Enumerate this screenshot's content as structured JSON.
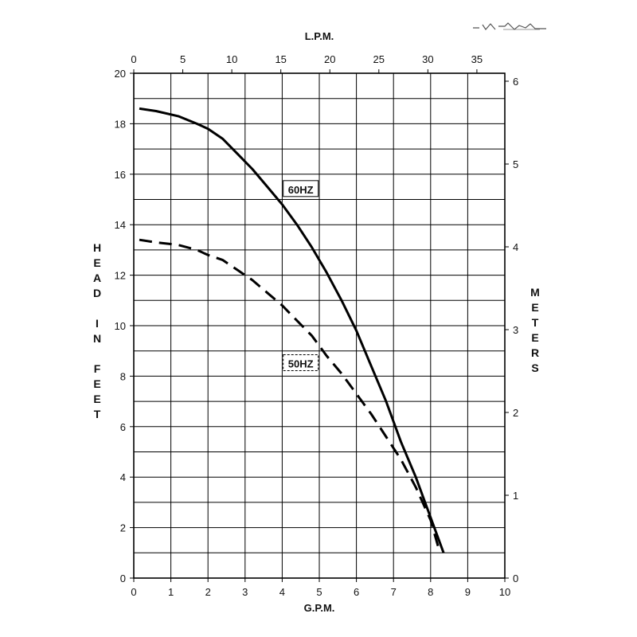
{
  "chart_data": {
    "type": "line",
    "title": "",
    "xlabel_bottom": "G.P.M.",
    "xlabel_top": "L.P.M.",
    "ylabel_left": "HEAD IN FEET",
    "ylabel_right": "METERS",
    "xlim": [
      0,
      10
    ],
    "ylim": [
      0,
      20
    ],
    "x_top_lim": [
      0,
      37.85
    ],
    "y_right_lim": [
      0,
      6.096
    ],
    "x_ticks": [
      "0",
      "1",
      "2",
      "3",
      "4",
      "5",
      "6",
      "7",
      "8",
      "9",
      "10"
    ],
    "y_ticks": [
      "0",
      "2",
      "4",
      "6",
      "8",
      "10",
      "12",
      "14",
      "16",
      "18",
      "20"
    ],
    "x_top_ticks": [
      "0",
      "5",
      "10",
      "15",
      "20",
      "25",
      "30",
      "35"
    ],
    "y_right_ticks": [
      "0",
      "1",
      "2",
      "3",
      "4",
      "5",
      "6"
    ],
    "grid": true,
    "series": [
      {
        "name": "60HZ",
        "style": "solid",
        "color": "#000000",
        "x": [
          0.15,
          0.6,
          1.2,
          1.7,
          2.0,
          2.4,
          2.8,
          3.2,
          3.6,
          4.0,
          4.4,
          4.8,
          5.2,
          5.6,
          6.0,
          6.4,
          6.8,
          7.2,
          7.6,
          8.0,
          8.35
        ],
        "y": [
          18.6,
          18.5,
          18.3,
          18.0,
          17.8,
          17.4,
          16.8,
          16.2,
          15.5,
          14.8,
          14.0,
          13.1,
          12.1,
          11.0,
          9.8,
          8.4,
          7.0,
          5.4,
          4.0,
          2.4,
          1.0
        ]
      },
      {
        "name": "50HZ",
        "style": "dashed",
        "color": "#000000",
        "x": [
          0.15,
          0.6,
          1.2,
          1.7,
          2.0,
          2.4,
          2.8,
          3.2,
          3.6,
          4.0,
          4.4,
          4.8,
          5.2,
          5.6,
          6.0,
          6.4,
          6.8,
          7.2,
          7.6,
          8.0,
          8.25
        ],
        "y": [
          13.4,
          13.3,
          13.2,
          13.0,
          12.8,
          12.6,
          12.2,
          11.8,
          11.3,
          10.8,
          10.2,
          9.6,
          8.8,
          8.1,
          7.3,
          6.5,
          5.6,
          4.7,
          3.6,
          2.3,
          1.0
        ]
      }
    ]
  }
}
